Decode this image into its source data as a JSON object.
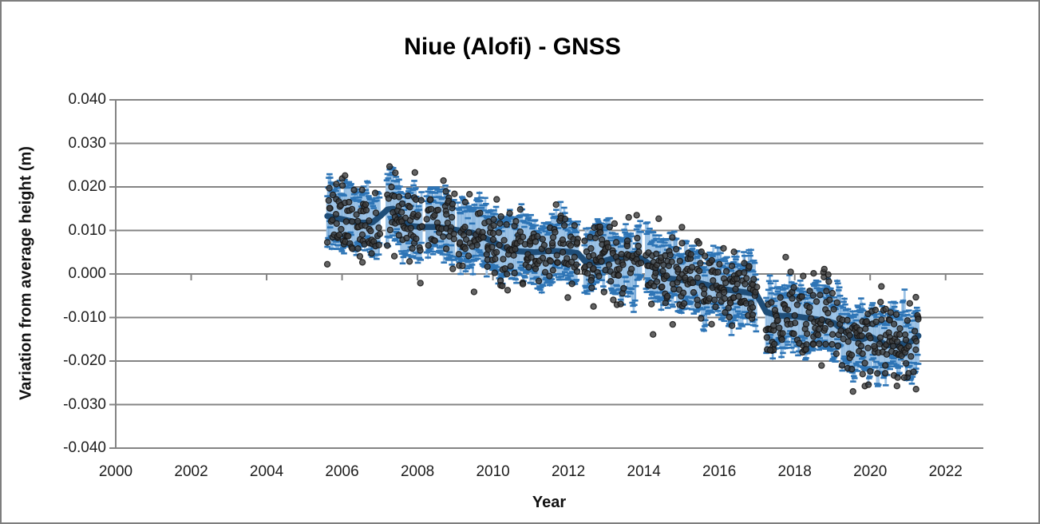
{
  "title": "Niue (Alofi) - GNSS",
  "chart_data": {
    "type": "scatter",
    "title": "Niue (Alofi) - GNSS",
    "xlabel": "Year",
    "ylabel": "Variation from average height (m)",
    "xlim": [
      2000,
      2023
    ],
    "ylim": [
      -0.04,
      0.04
    ],
    "x_ticks": [
      2000,
      2002,
      2004,
      2006,
      2008,
      2010,
      2012,
      2014,
      2016,
      2018,
      2020,
      2022
    ],
    "y_tick_labels": [
      "0.040",
      "0.030",
      "0.020",
      "0.010",
      "0.000",
      "-0.010",
      "-0.020",
      "-0.030",
      "-0.040"
    ],
    "y_tick_values": [
      0.04,
      0.03,
      0.02,
      0.01,
      0.0,
      -0.01,
      -0.02,
      -0.03,
      -0.04
    ],
    "grid": true,
    "legend": "none",
    "data_start": 2005.61,
    "data_end": 2021.28,
    "weekly_step": 0.0192,
    "error_half_width": 0.006,
    "scatter_sigma": 0.0042,
    "seed": 42,
    "gaps": [
      [
        2007.0,
        2007.17
      ],
      [
        2008.12,
        2008.24
      ],
      [
        2008.97,
        2009.06
      ],
      [
        2012.27,
        2012.42
      ],
      [
        2013.94,
        2014.05
      ],
      [
        2016.99,
        2017.23
      ]
    ],
    "trend_points": [
      [
        2005.61,
        0.0133
      ],
      [
        2006.05,
        0.0125
      ],
      [
        2006.4,
        0.0118
      ],
      [
        2006.8,
        0.0118
      ],
      [
        2007.0,
        0.0132
      ],
      [
        2007.2,
        0.0148
      ],
      [
        2007.35,
        0.015
      ],
      [
        2007.55,
        0.0125
      ],
      [
        2007.7,
        0.0115
      ],
      [
        2007.85,
        0.011
      ],
      [
        2008.1,
        0.0108
      ],
      [
        2008.5,
        0.0108
      ],
      [
        2008.8,
        0.0105
      ],
      [
        2009.1,
        0.01
      ],
      [
        2009.45,
        0.0095
      ],
      [
        2009.75,
        0.0085
      ],
      [
        2010.05,
        0.0072
      ],
      [
        2010.35,
        0.0058
      ],
      [
        2010.7,
        0.0052
      ],
      [
        2011.1,
        0.005
      ],
      [
        2011.5,
        0.0053
      ],
      [
        2011.9,
        0.0052
      ],
      [
        2012.25,
        0.0048
      ],
      [
        2012.45,
        0.0028
      ],
      [
        2012.8,
        0.0026
      ],
      [
        2013.1,
        0.0034
      ],
      [
        2013.5,
        0.004
      ],
      [
        2013.9,
        0.0037
      ],
      [
        2014.1,
        0.0026
      ],
      [
        2014.35,
        0.0008
      ],
      [
        2014.65,
        -0.001
      ],
      [
        2015.0,
        -0.0014
      ],
      [
        2015.4,
        -0.0019
      ],
      [
        2015.8,
        -0.0028
      ],
      [
        2016.2,
        -0.0036
      ],
      [
        2016.6,
        -0.0041
      ],
      [
        2016.98,
        -0.0046
      ],
      [
        2017.25,
        -0.0088
      ],
      [
        2017.6,
        -0.0096
      ],
      [
        2018.0,
        -0.0097
      ],
      [
        2018.4,
        -0.0102
      ],
      [
        2018.8,
        -0.0107
      ],
      [
        2019.05,
        -0.0113
      ],
      [
        2019.3,
        -0.013
      ],
      [
        2019.55,
        -0.0147
      ],
      [
        2019.8,
        -0.015
      ],
      [
        2019.98,
        -0.0143
      ],
      [
        2020.2,
        -0.0152
      ],
      [
        2020.45,
        -0.0164
      ],
      [
        2020.7,
        -0.0164
      ],
      [
        2020.95,
        -0.0158
      ],
      [
        2021.1,
        -0.0155
      ],
      [
        2021.28,
        -0.0142
      ]
    ],
    "outliers": [
      [
        2007.93,
        0.0233
      ],
      [
        2008.98,
        0.0184
      ],
      [
        2013.6,
        0.013
      ],
      [
        2017.35,
        -0.0175
      ],
      [
        2018.3,
        -0.0173
      ],
      [
        2020.4,
        -0.0228
      ],
      [
        2020.63,
        -0.0233
      ],
      [
        2020.73,
        -0.0238
      ],
      [
        2020.9,
        -0.0238
      ],
      [
        2021.02,
        -0.0228
      ],
      [
        2021.15,
        -0.0225
      ]
    ],
    "series": [
      {
        "name": "daily-scatter",
        "type": "scatter",
        "color": "#3c3c3c",
        "edge_color": "#141414"
      },
      {
        "name": "weekly-uncertainty",
        "type": "errorbar",
        "color": "#9DC3E6",
        "stripe_color": "#6FA3D4",
        "cap_color": "#2E75B6"
      },
      {
        "name": "moving-average",
        "type": "line",
        "color": "#1F4E79"
      }
    ]
  },
  "colors": {
    "grid": "#848484",
    "axis": "#848484",
    "border": "#7e7e7e",
    "background": "#ffffff",
    "tick_text": "#1d1d1d",
    "title_text": "#000000"
  }
}
